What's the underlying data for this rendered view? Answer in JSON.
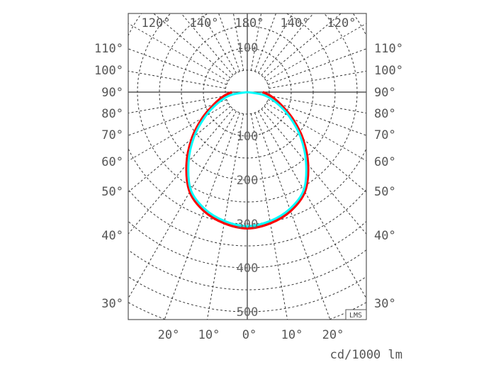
{
  "chart_data": {
    "type": "polar",
    "unit_label": "cd/1000 lm",
    "badge": "LMS",
    "radial_ticks": [
      "100",
      "200",
      "300",
      "400",
      "500"
    ],
    "radial_tick_values": [
      100,
      200,
      300,
      400,
      500
    ],
    "top_angle_labels": [
      "120°",
      "140°",
      "180°",
      "140°",
      "120°"
    ],
    "left_angle_labels": [
      "110°",
      "100°",
      "90°",
      "80°",
      "70°",
      "60°",
      "50°",
      "40°",
      "30°"
    ],
    "right_angle_labels": [
      "110°",
      "100°",
      "90°",
      "80°",
      "70°",
      "60°",
      "50°",
      "40°",
      "30°"
    ],
    "bottom_angle_labels": [
      "20°",
      "10°",
      "0°",
      "10°",
      "20°"
    ],
    "grid": true,
    "angles_deg": [
      0,
      10,
      20,
      30,
      40,
      50,
      60,
      70,
      80,
      90
    ],
    "series": [
      {
        "color": "#ff0000",
        "values": [
          310,
          303,
          288,
          262,
          215,
          165,
          118,
          80,
          55,
          35
        ]
      },
      {
        "color": "#00ffff",
        "values": [
          305,
          298,
          283,
          257,
          208,
          158,
          110,
          70,
          38,
          0
        ]
      }
    ]
  }
}
